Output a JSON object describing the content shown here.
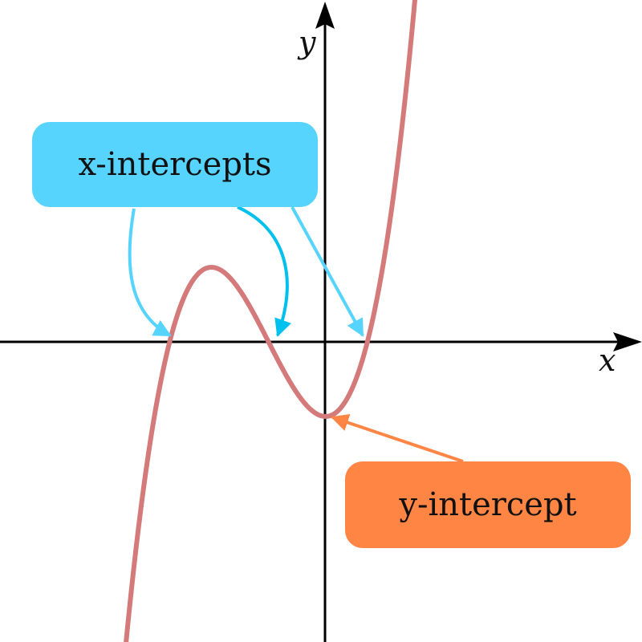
{
  "axes": {
    "x_label": "x",
    "y_label": "y"
  },
  "curve": {
    "color": "#d47a7a",
    "roots": [
      -2.2,
      -0.8,
      0.6
    ],
    "y_intercept": -1.056
  },
  "callouts": {
    "x_intercepts": {
      "label": "x-intercepts",
      "color": "#56d4fd",
      "arrow_color": "#56d4fd",
      "arrow_color_alt": "#00c1ee"
    },
    "y_intercept": {
      "label": "y-intercept",
      "color": "#ff8544",
      "arrow_color": "#ff8544"
    }
  }
}
